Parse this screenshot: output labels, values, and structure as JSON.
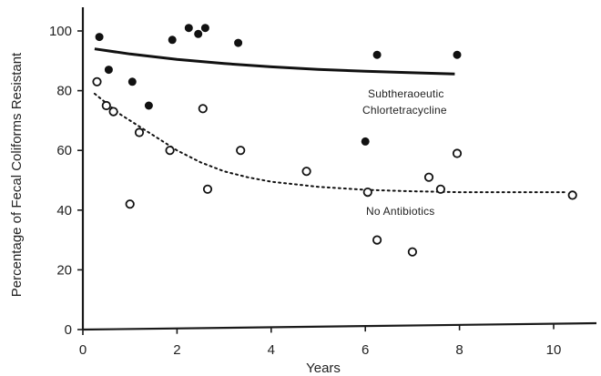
{
  "chart_data": {
    "type": "scatter",
    "xlabel": "Years",
    "ylabel": "Percentage of Fecal Coliforms Resistant",
    "xlim": [
      0,
      10.5
    ],
    "ylim": [
      0,
      100
    ],
    "x_ticks": [
      0,
      2,
      4,
      6,
      8,
      10
    ],
    "y_ticks": [
      0,
      20,
      40,
      60,
      80,
      100
    ],
    "grid": false,
    "series": [
      {
        "name": "Subtherapeutic Chlortetracycline",
        "marker": "filled-circle",
        "points": [
          [
            0.35,
            98
          ],
          [
            0.55,
            87
          ],
          [
            1.05,
            83
          ],
          [
            1.4,
            75
          ],
          [
            1.9,
            97
          ],
          [
            2.25,
            101
          ],
          [
            2.45,
            99
          ],
          [
            2.6,
            101
          ],
          [
            3.3,
            96
          ],
          [
            6.0,
            63
          ],
          [
            6.25,
            92
          ],
          [
            7.95,
            92
          ]
        ],
        "trend": {
          "style": "solid",
          "points": [
            [
              0.25,
              94
            ],
            [
              1,
              92.3
            ],
            [
              2,
              90.5
            ],
            [
              3,
              89.1
            ],
            [
              4,
              88
            ],
            [
              5,
              87.1
            ],
            [
              6,
              86.5
            ],
            [
              7,
              86
            ],
            [
              7.9,
              85.6
            ]
          ]
        }
      },
      {
        "name": "No Antibiotics",
        "marker": "open-circle",
        "points": [
          [
            0.3,
            83
          ],
          [
            0.5,
            75
          ],
          [
            0.65,
            73
          ],
          [
            1.0,
            42
          ],
          [
            1.2,
            66
          ],
          [
            1.85,
            60
          ],
          [
            2.55,
            74
          ],
          [
            2.65,
            47
          ],
          [
            3.35,
            60
          ],
          [
            4.75,
            53
          ],
          [
            6.05,
            46
          ],
          [
            6.25,
            30
          ],
          [
            7.0,
            26
          ],
          [
            7.35,
            51
          ],
          [
            7.6,
            47
          ],
          [
            7.95,
            59
          ],
          [
            10.4,
            45
          ]
        ],
        "trend": {
          "style": "dotted",
          "points": [
            [
              0.25,
              79
            ],
            [
              0.8,
              72
            ],
            [
              1.5,
              65
            ],
            [
              2,
              60
            ],
            [
              2.5,
              56
            ],
            [
              3,
              53
            ],
            [
              3.5,
              51
            ],
            [
              4,
              49.5
            ],
            [
              5,
              47.8
            ],
            [
              6,
              46.8
            ],
            [
              7,
              46.3
            ],
            [
              8,
              46
            ],
            [
              9,
              46
            ],
            [
              10.3,
              46
            ]
          ]
        }
      }
    ]
  },
  "labels": {
    "series1_line1": "Subtheraoeutic",
    "series1_line2": "Chlortetracycline",
    "series2": "No Antibiotics"
  },
  "colors": {
    "ink": "#111111",
    "axis": "#1a1a1a"
  }
}
